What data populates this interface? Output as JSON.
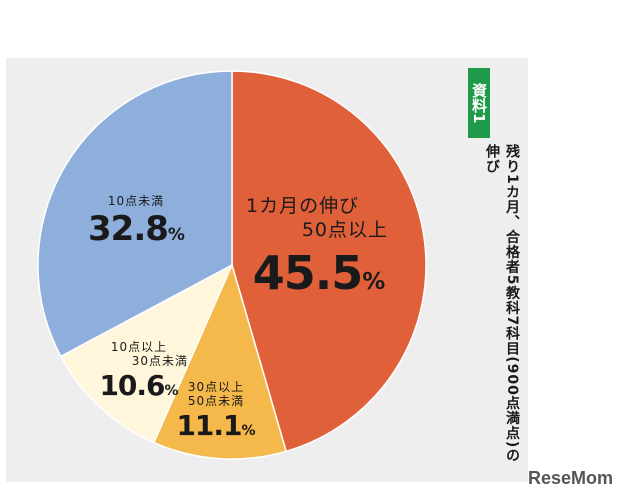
{
  "chart_data": {
    "type": "pie",
    "title": "",
    "slices": [
      {
        "label_lines": [
          "1カ月の伸び",
          "50点以上"
        ],
        "value": 45.5,
        "display": "45.5",
        "unit": "%",
        "color": "#e0603a"
      },
      {
        "label_lines": [
          "30点以上",
          "50点未満"
        ],
        "value": 11.1,
        "display": "11.1",
        "unit": "%",
        "color": "#f5b84a"
      },
      {
        "label_lines": [
          "10点以上",
          "30点未満"
        ],
        "value": 10.6,
        "display": "10.6",
        "unit": "%",
        "color": "#fff6dc"
      },
      {
        "label_lines": [
          "10点未満"
        ],
        "value": 32.8,
        "display": "32.8",
        "unit": "%",
        "color": "#8eaedc"
      }
    ],
    "start": "12 o'clock",
    "direction": "clockwise",
    "legend": "none"
  },
  "side": {
    "badge": "資料1",
    "caption": "残り1カ月、合格者5教科7科目(900点満点)の伸び",
    "badge_color": "#1e9a4a"
  },
  "watermark": "ReseMom"
}
